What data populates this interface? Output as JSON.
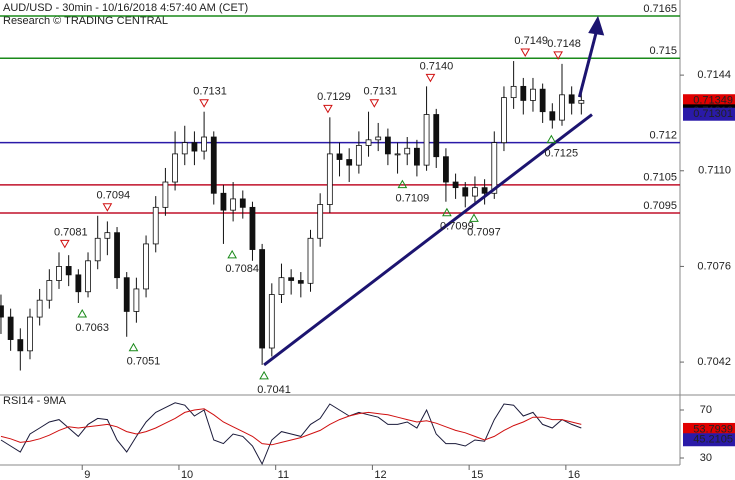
{
  "chart_data": {
    "type": "candlestick",
    "title": "AUD/USD - 30min - 10/16/2018 4:57:40 AM (CET)",
    "subtitle": "Research © TRADING CENTRAL",
    "xlim": [
      0.15,
      7.18
    ],
    "xticks": [
      {
        "value": 1,
        "label": "9"
      },
      {
        "value": 2,
        "label": "10"
      },
      {
        "value": 3,
        "label": "11"
      },
      {
        "value": 4,
        "label": "12"
      },
      {
        "value": 5,
        "label": "15"
      },
      {
        "value": 6,
        "label": "16"
      }
    ],
    "ylim": [
      0.70303,
      0.71707
    ],
    "yticks": [
      0.7042,
      0.7076,
      {
        "value": 0.711,
        "label": "0.7110"
      },
      0.7144
    ],
    "x": [
      0.16,
      0.26,
      0.36,
      0.46,
      0.56,
      0.66,
      0.76,
      0.86,
      0.96,
      1.06,
      1.16,
      1.26,
      1.36,
      1.46,
      1.56,
      1.66,
      1.76,
      1.86,
      1.96,
      2.06,
      2.16,
      2.26,
      2.36,
      2.46,
      2.56,
      2.66,
      2.76,
      2.86,
      2.96,
      3.06,
      3.16,
      3.26,
      3.36,
      3.46,
      3.56,
      3.66,
      3.76,
      3.86,
      3.96,
      4.06,
      4.16,
      4.26,
      4.36,
      4.46,
      4.56,
      4.66,
      4.76,
      4.86,
      4.96,
      5.06,
      5.16,
      5.26,
      5.36,
      5.46,
      5.56,
      5.66,
      5.76,
      5.86,
      5.96,
      6.06,
      6.16
    ],
    "ohlc": [
      [
        0.7062,
        0.7066,
        0.7052,
        0.7058
      ],
      [
        0.7058,
        0.7061,
        0.7046,
        0.705
      ],
      [
        0.705,
        0.7054,
        0.7039,
        0.7046
      ],
      [
        0.7046,
        0.7061,
        0.7043,
        0.7058
      ],
      [
        0.7058,
        0.7068,
        0.7055,
        0.7064
      ],
      [
        0.7064,
        0.7075,
        0.7061,
        0.7071
      ],
      [
        0.7071,
        0.7081,
        0.7068,
        0.7076
      ],
      [
        0.7076,
        0.708,
        0.7069,
        0.7073
      ],
      [
        0.7073,
        0.7075,
        0.7063,
        0.7067
      ],
      [
        0.7067,
        0.7081,
        0.7065,
        0.7078
      ],
      [
        0.7078,
        0.7094,
        0.7075,
        0.7086
      ],
      [
        0.7086,
        0.7092,
        0.708,
        0.7088
      ],
      [
        0.7088,
        0.709,
        0.7068,
        0.7072
      ],
      [
        0.7072,
        0.7074,
        0.7051,
        0.706
      ],
      [
        0.706,
        0.7072,
        0.7056,
        0.7068
      ],
      [
        0.7068,
        0.7087,
        0.7065,
        0.7084
      ],
      [
        0.7084,
        0.7101,
        0.7081,
        0.7097
      ],
      [
        0.7097,
        0.7111,
        0.7094,
        0.7106
      ],
      [
        0.7106,
        0.7124,
        0.7103,
        0.7116
      ],
      [
        0.7116,
        0.7126,
        0.7112,
        0.712
      ],
      [
        0.712,
        0.7124,
        0.7112,
        0.7117
      ],
      [
        0.7117,
        0.7131,
        0.7114,
        0.7122
      ],
      [
        0.7122,
        0.7124,
        0.7098,
        0.7102
      ],
      [
        0.7102,
        0.7105,
        0.7084,
        0.7096
      ],
      [
        0.7096,
        0.7106,
        0.7092,
        0.71
      ],
      [
        0.71,
        0.7103,
        0.7093,
        0.7097
      ],
      [
        0.7097,
        0.7099,
        0.7078,
        0.7082
      ],
      [
        0.7082,
        0.7084,
        0.7041,
        0.7047
      ],
      [
        0.7047,
        0.707,
        0.7044,
        0.7066
      ],
      [
        0.7066,
        0.7077,
        0.7063,
        0.7072
      ],
      [
        0.7072,
        0.7075,
        0.7066,
        0.7071
      ],
      [
        0.7071,
        0.7074,
        0.7065,
        0.707
      ],
      [
        0.707,
        0.7089,
        0.7067,
        0.7086
      ],
      [
        0.7086,
        0.7102,
        0.7083,
        0.7098
      ],
      [
        0.7098,
        0.7129,
        0.7095,
        0.7116
      ],
      [
        0.7116,
        0.712,
        0.7108,
        0.7114
      ],
      [
        0.7114,
        0.7118,
        0.7106,
        0.7112
      ],
      [
        0.7112,
        0.7124,
        0.7109,
        0.7119
      ],
      [
        0.7119,
        0.7131,
        0.7115,
        0.7121
      ],
      [
        0.7121,
        0.7127,
        0.7117,
        0.7122
      ],
      [
        0.7122,
        0.7125,
        0.7112,
        0.7116
      ],
      [
        0.7116,
        0.712,
        0.7109,
        0.7116
      ],
      [
        0.7116,
        0.7122,
        0.7112,
        0.7118
      ],
      [
        0.7118,
        0.7121,
        0.7108,
        0.7112
      ],
      [
        0.7112,
        0.714,
        0.711,
        0.713
      ],
      [
        0.713,
        0.7132,
        0.7111,
        0.7115
      ],
      [
        0.7115,
        0.7118,
        0.7099,
        0.7106
      ],
      [
        0.7106,
        0.7109,
        0.71,
        0.7104
      ],
      [
        0.7104,
        0.7106,
        0.7097,
        0.7101
      ],
      [
        0.7101,
        0.7108,
        0.7098,
        0.7104
      ],
      [
        0.7104,
        0.7107,
        0.7098,
        0.7102
      ],
      [
        0.7102,
        0.7124,
        0.71,
        0.712
      ],
      [
        0.712,
        0.714,
        0.7117,
        0.7136
      ],
      [
        0.7136,
        0.7149,
        0.7132,
        0.714
      ],
      [
        0.714,
        0.7143,
        0.713,
        0.7135
      ],
      [
        0.7135,
        0.7143,
        0.7131,
        0.7139
      ],
      [
        0.7139,
        0.7141,
        0.7127,
        0.7131
      ],
      [
        0.7131,
        0.7134,
        0.7125,
        0.7128
      ],
      [
        0.7128,
        0.7148,
        0.7126,
        0.7137
      ],
      [
        0.7137,
        0.714,
        0.713,
        0.7134
      ],
      [
        0.7134,
        0.7138,
        0.713,
        0.7135
      ]
    ],
    "levels": [
      {
        "value": 0.7165,
        "color": "#1a8a1a"
      },
      {
        "value": 0.715,
        "color": "#1a8a1a"
      },
      {
        "value": 0.712,
        "color": "#2a1aa8"
      },
      {
        "value": 0.7105,
        "color": "#c0102a"
      },
      {
        "value": 0.7095,
        "color": "#c0102a"
      }
    ],
    "trendline": {
      "x": [
        2.88,
        6.27
      ],
      "y": [
        0.7041,
        0.713
      ],
      "color": "#1c1470"
    },
    "arrow": {
      "x": [
        6.14,
        6.33
      ],
      "y": [
        0.71362,
        0.71642
      ],
      "color": "#1c1470"
    },
    "annotations": [
      {
        "label": "0.7081",
        "x": 0.82,
        "y": 0.7081,
        "kind": "peak"
      },
      {
        "label": "0.7094",
        "x": 1.26,
        "y": 0.7094,
        "kind": "peak"
      },
      {
        "label": "0.7063",
        "x": 1.0,
        "y": 0.7063,
        "kind": "trough"
      },
      {
        "label": "0.7051",
        "x": 1.53,
        "y": 0.7051,
        "kind": "trough"
      },
      {
        "label": "0.7131",
        "x": 2.26,
        "y": 0.7131,
        "kind": "peak"
      },
      {
        "label": "0.7084",
        "x": 2.55,
        "y": 0.7084,
        "kind": "trough"
      },
      {
        "label": "0.7041",
        "x": 2.88,
        "y": 0.7041,
        "kind": "trough"
      },
      {
        "label": "0.7129",
        "x": 3.54,
        "y": 0.7129,
        "kind": "peak"
      },
      {
        "label": "0.7131",
        "x": 4.02,
        "y": 0.7131,
        "kind": "peak"
      },
      {
        "label": "0.7109",
        "x": 4.31,
        "y": 0.7109,
        "kind": "trough"
      },
      {
        "label": "0.7140",
        "x": 4.6,
        "y": 0.714,
        "kind": "peak"
      },
      {
        "label": "0.7099",
        "x": 4.77,
        "y": 0.7099,
        "kind": "trough"
      },
      {
        "label": "0.7097",
        "x": 5.05,
        "y": 0.7097,
        "kind": "trough"
      },
      {
        "label": "0.7149",
        "x": 5.58,
        "y": 0.7149,
        "kind": "peak"
      },
      {
        "label": "0.7148",
        "x": 5.92,
        "y": 0.7148,
        "kind": "peak"
      },
      {
        "label": "0.7125",
        "x": 5.85,
        "y": 0.7125,
        "kind": "trough"
      }
    ],
    "price_labels": [
      {
        "value": 0.71349,
        "color": "#e00000"
      },
      {
        "value": 0.71313,
        "color": "#000000"
      },
      {
        "value": 0.71301,
        "color": "#2a1aa8"
      }
    ],
    "indicator": {
      "title": "RSI14 - 9MA",
      "ylim": [
        20,
        82.5
      ],
      "yticks": [
        70,
        30
      ],
      "series": [
        {
          "color": "#1a1a3a",
          "values": [
            45,
            40,
            35,
            50,
            55,
            60,
            62,
            55,
            48,
            58,
            63,
            62,
            45,
            35,
            48,
            60,
            68,
            72,
            76,
            74,
            65,
            70,
            45,
            42,
            50,
            48,
            40,
            25,
            45,
            52,
            50,
            48,
            58,
            63,
            75,
            70,
            65,
            68,
            66,
            64,
            58,
            58,
            60,
            55,
            70,
            50,
            42,
            42,
            40,
            45,
            44,
            62,
            75,
            74,
            65,
            68,
            58,
            55,
            62,
            58,
            55
          ]
        },
        {
          "color": "#d01010",
          "values": [
            48,
            46,
            43,
            44,
            46,
            49,
            53,
            56,
            55,
            56,
            57,
            58,
            56,
            52,
            50,
            52,
            55,
            59,
            63,
            68,
            70,
            71,
            66,
            60,
            56,
            52,
            48,
            42,
            41,
            43,
            45,
            47,
            50,
            53,
            58,
            62,
            65,
            67,
            68,
            67,
            66,
            64,
            62,
            60,
            61,
            59,
            56,
            53,
            51,
            48,
            45,
            48,
            53,
            57,
            60,
            64,
            64,
            62,
            62,
            60,
            58
          ]
        }
      ],
      "last_labels": [
        {
          "value": 53.7939,
          "color": "#e00000"
        },
        {
          "value": 45.2105,
          "color": "#2a1aa8"
        }
      ]
    }
  }
}
